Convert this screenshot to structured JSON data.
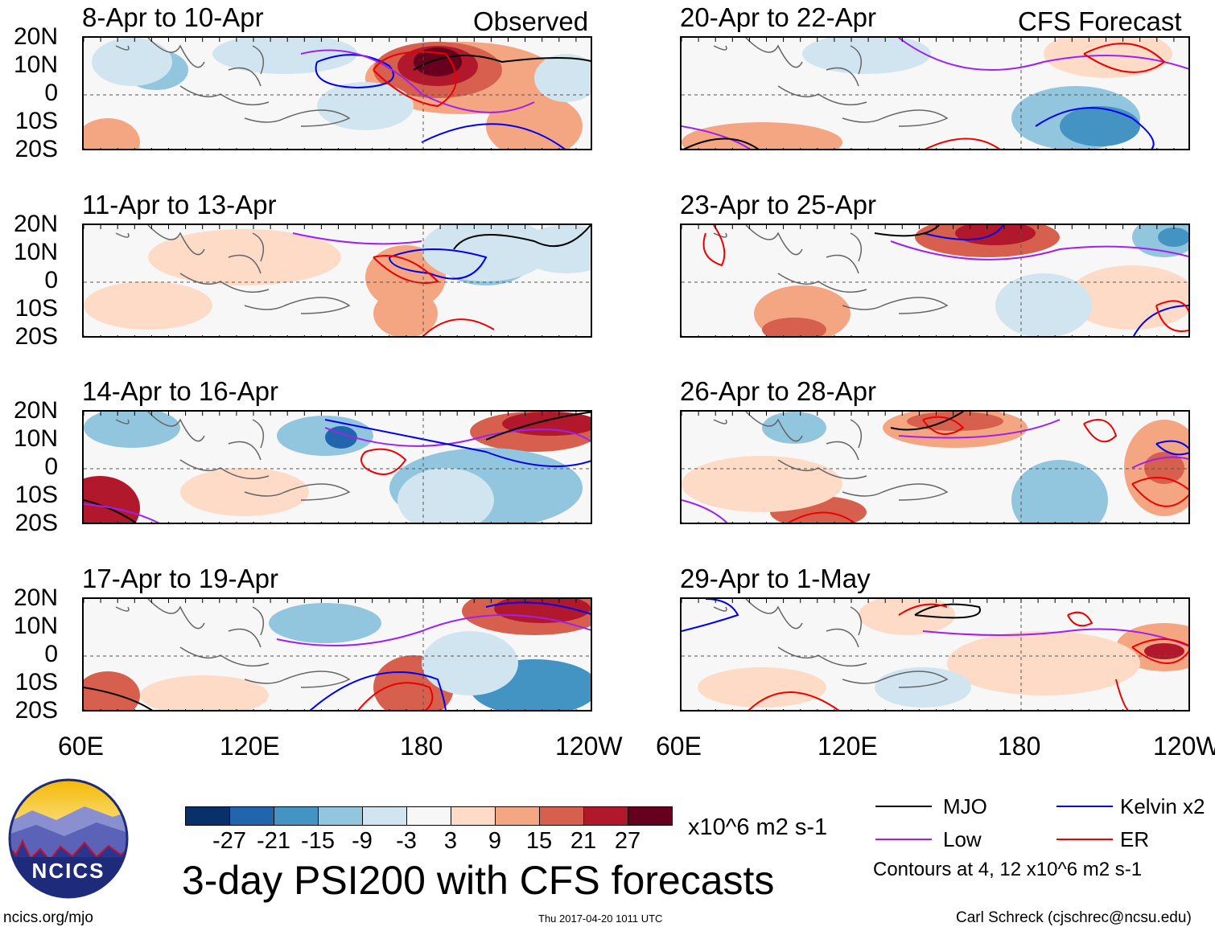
{
  "panels_left": {
    "header": "Observed",
    "titles": [
      "8-Apr to 10-Apr",
      "11-Apr to 13-Apr",
      "14-Apr to 16-Apr",
      "17-Apr to 19-Apr"
    ]
  },
  "panels_right": {
    "header": "CFS Forecast",
    "titles": [
      "20-Apr to 22-Apr",
      "23-Apr to 25-Apr",
      "26-Apr to 28-Apr",
      "29-Apr to 1-May"
    ]
  },
  "lat_labels": [
    "20N",
    "10N",
    "0",
    "10S",
    "20S"
  ],
  "lon_labels": [
    "60E",
    "120E",
    "180",
    "120W"
  ],
  "colorbar": {
    "colors": [
      "#08306b",
      "#2166ac",
      "#4393c3",
      "#92c5de",
      "#d1e5f0",
      "#f7f7f7",
      "#fddbc7",
      "#f4a582",
      "#d6604d",
      "#b2182b",
      "#67001f"
    ],
    "ticks": [
      "-27",
      "-21",
      "-15",
      "-9",
      "-3",
      "3",
      "9",
      "15",
      "21",
      "27"
    ],
    "units": "x10^6 m2 s-1"
  },
  "title": "3-day PSI200 with CFS forecasts",
  "legend": {
    "items": [
      {
        "label": "MJO",
        "color": "#000000"
      },
      {
        "label": "Kelvin x2",
        "color": "#0000ee"
      },
      {
        "label": "Low",
        "color": "#a020f0"
      },
      {
        "label": "ER",
        "color": "#ee0000"
      }
    ],
    "note": "Contours at 4, 12 x10^6 m2 s-1"
  },
  "logo": {
    "text": "NCICS"
  },
  "footer": {
    "url": "ncics.org/mjo",
    "timestamp": "Thu 2017-04-20 1011 UTC",
    "credit": "Carl Schreck (cjschrec@ncsu.edu)"
  }
}
